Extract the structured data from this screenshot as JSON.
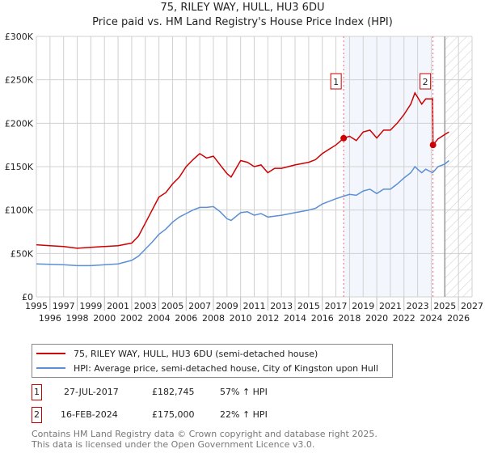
{
  "title": "75, RILEY WAY, HULL, HU3 6DU",
  "subtitle": "Price paid vs. HM Land Registry's House Price Index (HPI)",
  "chart_data": {
    "type": "line",
    "title": "75, RILEY WAY, HULL, HU3 6DU",
    "subtitle": "Price paid vs. HM Land Registry's House Price Index (HPI)",
    "xlim": [
      1995,
      2027
    ],
    "ylim": [
      0,
      300000
    ],
    "x_ticks": [
      "1995",
      "1996",
      "1997",
      "1998",
      "1999",
      "2000",
      "2001",
      "2002",
      "2003",
      "2004",
      "2005",
      "2006",
      "2007",
      "2008",
      "2009",
      "2010",
      "2011",
      "2012",
      "2013",
      "2014",
      "2015",
      "2016",
      "2017",
      "2018",
      "2019",
      "2020",
      "2021",
      "2022",
      "2023",
      "2024",
      "2025",
      "2026",
      "2027"
    ],
    "y_ticks": [
      {
        "v": 0,
        "label": "£0"
      },
      {
        "v": 50000,
        "label": "£50K"
      },
      {
        "v": 100000,
        "label": "£100K"
      },
      {
        "v": 150000,
        "label": "£150K"
      },
      {
        "v": 200000,
        "label": "£200K"
      },
      {
        "v": 250000,
        "label": "£250K"
      },
      {
        "v": 300000,
        "label": "£300K"
      }
    ],
    "grid": true,
    "legend_position": "below",
    "forecast_start": 2025.0,
    "series": [
      {
        "name": "75, RILEY WAY, HULL, HU3 6DU (semi-detached house)",
        "color": "#cc0000",
        "x": [
          1995,
          1996,
          1997,
          1998,
          1999,
          2000,
          2001,
          2002,
          2002.5,
          2003,
          2003.5,
          2004,
          2004.5,
          2005,
          2005.5,
          2006,
          2006.5,
          2007,
          2007.5,
          2008,
          2008.5,
          2009,
          2009.3,
          2010,
          2010.5,
          2011,
          2011.5,
          2012,
          2012.5,
          2013,
          2014,
          2015,
          2015.5,
          2016,
          2016.5,
          2017,
          2017.57,
          2018,
          2018.5,
          2019,
          2019.5,
          2020,
          2020.5,
          2021,
          2021.5,
          2022,
          2022.5,
          2022.8,
          2023,
          2023.3,
          2023.6,
          2024.1,
          2024.13,
          2024.5,
          2025,
          2025.3
        ],
        "y": [
          60000,
          59000,
          58000,
          56000,
          57000,
          58000,
          59000,
          62000,
          70000,
          85000,
          100000,
          115000,
          120000,
          130000,
          138000,
          150000,
          158000,
          165000,
          160000,
          162000,
          152000,
          142000,
          138000,
          157000,
          155000,
          150000,
          152000,
          143000,
          148000,
          148000,
          152000,
          155000,
          158000,
          165000,
          170000,
          175000,
          182745,
          185000,
          180000,
          190000,
          192000,
          183000,
          192000,
          192000,
          200000,
          210000,
          222000,
          235000,
          230000,
          222000,
          228000,
          228000,
          175000,
          182000,
          187000,
          190000
        ]
      },
      {
        "name": "HPI: Average price, semi-detached house, City of Kingston upon Hull",
        "color": "#5b8fd6",
        "x": [
          1995,
          1996,
          1997,
          1998,
          1999,
          2000,
          2001,
          2002,
          2002.5,
          2003,
          2003.5,
          2004,
          2004.5,
          2005,
          2005.5,
          2006,
          2006.5,
          2007,
          2007.5,
          2008,
          2008.5,
          2009,
          2009.3,
          2010,
          2010.5,
          2011,
          2011.5,
          2012,
          2012.5,
          2013,
          2014,
          2015,
          2015.5,
          2016,
          2016.5,
          2017,
          2017.57,
          2018,
          2018.5,
          2019,
          2019.5,
          2020,
          2020.5,
          2021,
          2021.5,
          2022,
          2022.5,
          2022.8,
          2023,
          2023.3,
          2023.6,
          2024.1,
          2024.5,
          2025,
          2025.3
        ],
        "y": [
          38000,
          37500,
          37000,
          36000,
          36000,
          37000,
          38000,
          42000,
          47000,
          55000,
          63000,
          72000,
          78000,
          86000,
          92000,
          96000,
          100000,
          103000,
          103000,
          104000,
          98000,
          90000,
          88000,
          97000,
          98000,
          94000,
          96000,
          92000,
          93000,
          94000,
          97000,
          100000,
          102000,
          107000,
          110000,
          113000,
          116000,
          118000,
          117000,
          122000,
          124000,
          119000,
          124000,
          124000,
          130000,
          137000,
          143000,
          150000,
          147000,
          143000,
          147000,
          143000,
          150000,
          153000,
          157000
        ]
      }
    ],
    "annotations": [
      {
        "label": "1",
        "x": 2017.57,
        "y": 182745
      },
      {
        "label": "2",
        "x": 2024.13,
        "y": 175000
      }
    ]
  },
  "legend": [
    {
      "label": "75, RILEY WAY, HULL, HU3 6DU (semi-detached house)",
      "color": "#cc0000"
    },
    {
      "label": "HPI: Average price, semi-detached house, City of Kingston upon Hull",
      "color": "#5b8fd6"
    }
  ],
  "sales": [
    {
      "num": "1",
      "date": "27-JUL-2017",
      "price": "£182,745",
      "hpi": "57% ↑ HPI"
    },
    {
      "num": "2",
      "date": "16-FEB-2024",
      "price": "£175,000",
      "hpi": "22% ↑ HPI"
    }
  ],
  "footer": {
    "line1": "Contains HM Land Registry data © Crown copyright and database right 2025.",
    "line2": "This data is licensed under the Open Government Licence v3.0."
  }
}
